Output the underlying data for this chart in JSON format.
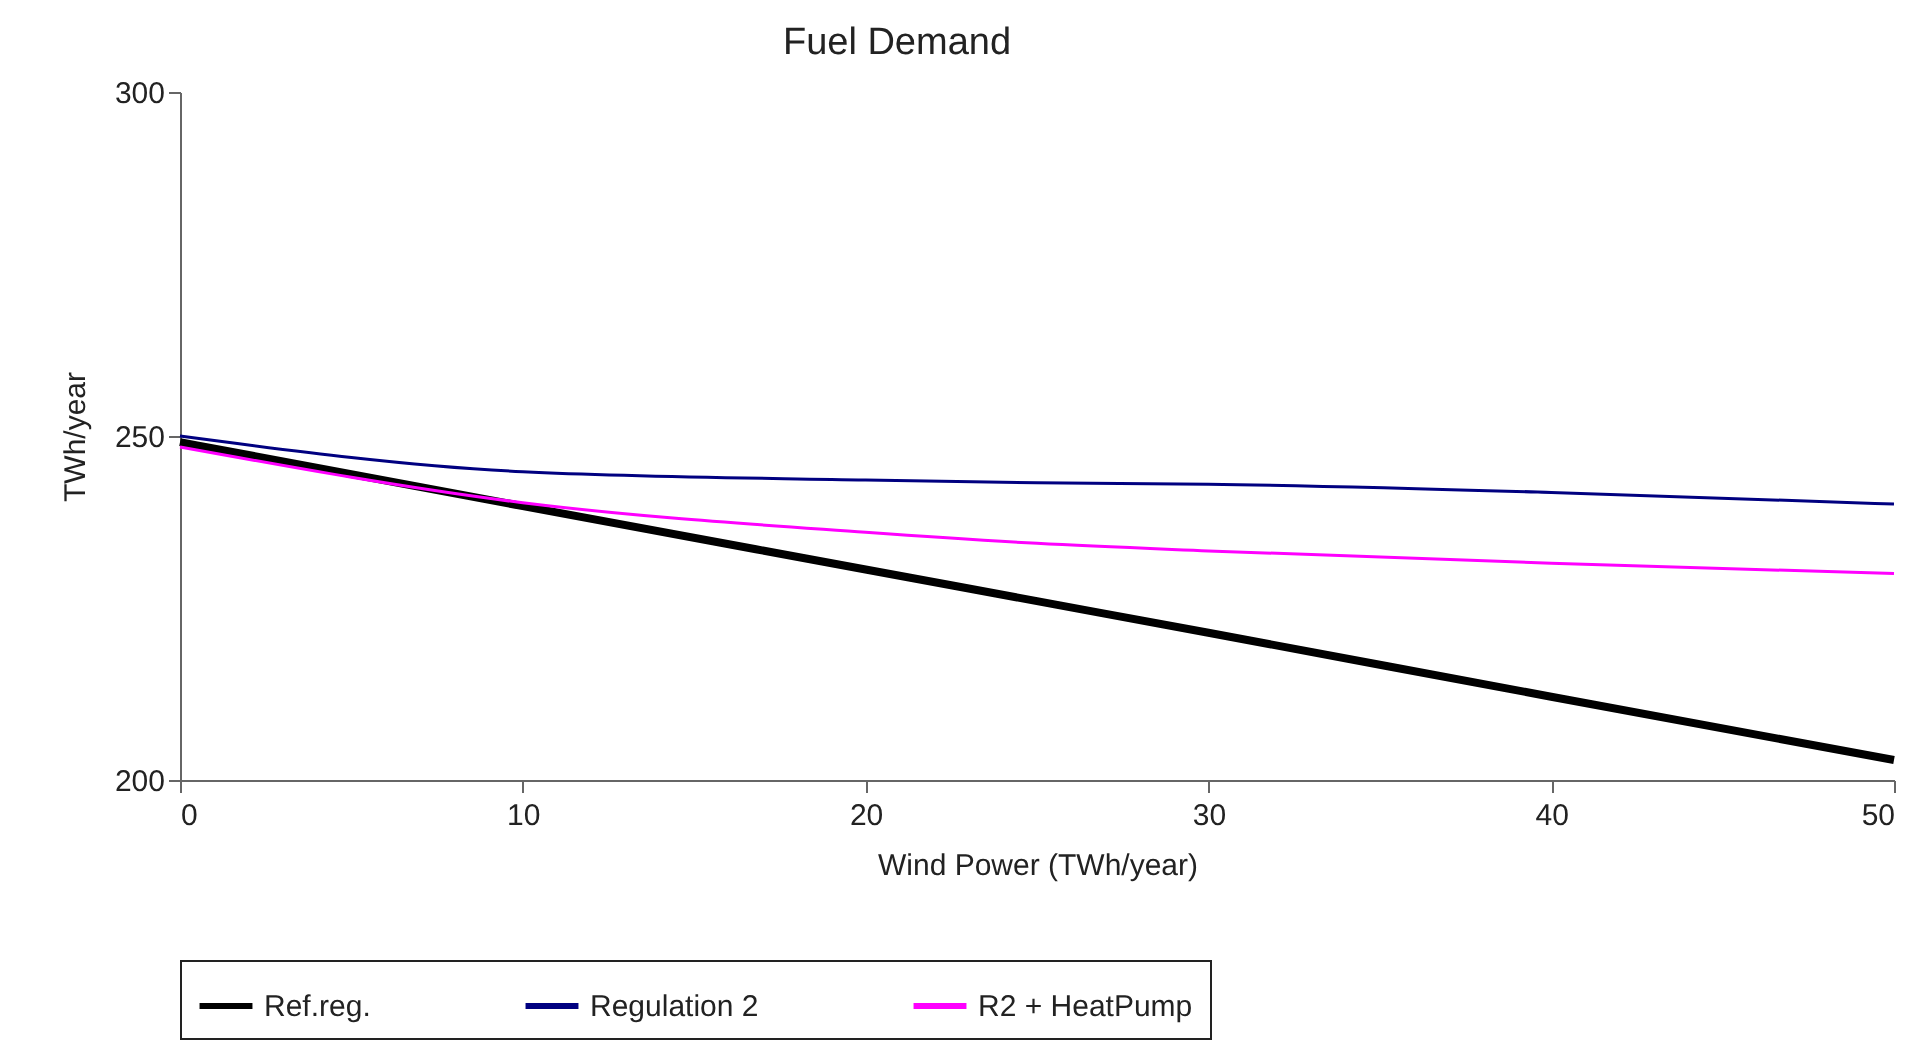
{
  "chart_data": {
    "type": "line",
    "title": "Fuel Demand",
    "xlabel": "Wind Power (TWh/year)",
    "ylabel": "TWh/year",
    "x": [
      0,
      10,
      20,
      25,
      30,
      40,
      50
    ],
    "series": [
      {
        "name": "Ref.reg.",
        "color": "#000000",
        "values": [
          249.1,
          239.8,
          230.6,
          226.0,
          221.4,
          212.1,
          202.9
        ]
      },
      {
        "name": "Regulation 2",
        "color": "#000080",
        "values": [
          250,
          244.8,
          243.6,
          243.2,
          243.0,
          241.8,
          240.1
        ]
      },
      {
        "name": "R2 + HeatPump",
        "color": "#ff00ff",
        "values": [
          248.4,
          240.3,
          236.0,
          234.4,
          233.3,
          231.5,
          230.0
        ]
      }
    ],
    "xlim": [
      0,
      50
    ],
    "xticks": [
      0,
      10,
      20,
      30,
      40,
      50
    ],
    "ylim": [
      200,
      300
    ],
    "yticks": [
      200,
      250,
      300
    ],
    "grid": false,
    "legend": "bottom",
    "marker": "none",
    "line_style": "solid"
  }
}
